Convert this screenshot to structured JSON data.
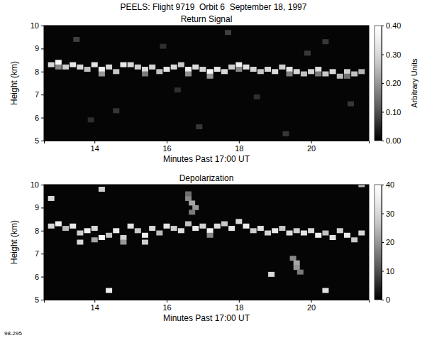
{
  "title": "PEELS: Flight 9719  Orbit 6  September 18, 1997",
  "annotation": "98-295",
  "chart_data": [
    {
      "type": "heatmap",
      "title": "Return Signal",
      "xlabel": "Minutes Past 17:00 UT",
      "ylabel": "Height (km)",
      "xlim": [
        12.6,
        21.6
      ],
      "xticks": [
        14,
        16,
        18,
        20
      ],
      "ylim": [
        5,
        10
      ],
      "yticks": [
        5,
        6,
        7,
        8,
        9,
        10
      ],
      "grid": false,
      "zlabel": "Arbitrary Units",
      "zlim": [
        0,
        0.4
      ],
      "zticks": [
        {
          "value": 0,
          "label": "0.00"
        },
        {
          "value": 0.1,
          "label": "0.10"
        },
        {
          "value": 0.2,
          "label": "0.20"
        },
        {
          "value": 0.3,
          "label": "0.30"
        },
        {
          "value": 0.4,
          "label": "0.40"
        }
      ],
      "cells": [
        [
          12.8,
          8.3,
          0.3
        ],
        [
          13.0,
          8.4,
          0.38
        ],
        [
          13.2,
          8.2,
          0.28
        ],
        [
          13.4,
          8.3,
          0.33
        ],
        [
          13.6,
          8.2,
          0.3
        ],
        [
          13.8,
          8.1,
          0.26
        ],
        [
          14.0,
          8.3,
          0.32
        ],
        [
          14.2,
          8.1,
          0.36
        ],
        [
          14.4,
          8.2,
          0.3
        ],
        [
          14.6,
          8.0,
          0.27
        ],
        [
          14.8,
          8.3,
          0.34
        ],
        [
          15.0,
          8.3,
          0.3
        ],
        [
          15.2,
          8.2,
          0.28
        ],
        [
          15.4,
          8.1,
          0.31
        ],
        [
          15.6,
          8.2,
          0.29
        ],
        [
          15.8,
          8.0,
          0.26
        ],
        [
          16.0,
          8.1,
          0.33
        ],
        [
          16.2,
          8.2,
          0.3
        ],
        [
          16.4,
          8.3,
          0.27
        ],
        [
          16.6,
          8.1,
          0.35
        ],
        [
          16.8,
          8.2,
          0.31
        ],
        [
          17.0,
          8.1,
          0.29
        ],
        [
          17.2,
          8.0,
          0.37
        ],
        [
          17.4,
          8.1,
          0.33
        ],
        [
          17.6,
          8.0,
          0.3
        ],
        [
          17.8,
          8.2,
          0.28
        ],
        [
          18.0,
          8.3,
          0.36
        ],
        [
          18.2,
          8.2,
          0.32
        ],
        [
          18.4,
          8.1,
          0.29
        ],
        [
          18.6,
          8.0,
          0.27
        ],
        [
          18.8,
          8.1,
          0.3
        ],
        [
          19.0,
          8.0,
          0.31
        ],
        [
          19.2,
          8.2,
          0.28
        ],
        [
          19.4,
          8.1,
          0.33
        ],
        [
          19.6,
          8.0,
          0.3
        ],
        [
          19.8,
          7.9,
          0.26
        ],
        [
          20.0,
          8.0,
          0.29
        ],
        [
          20.2,
          8.1,
          0.31
        ],
        [
          20.4,
          7.9,
          0.27
        ],
        [
          20.6,
          8.0,
          0.3
        ],
        [
          20.8,
          7.8,
          0.25
        ],
        [
          21.0,
          8.0,
          0.28
        ],
        [
          21.2,
          7.9,
          0.26
        ],
        [
          21.4,
          8.0,
          0.24
        ],
        [
          13.0,
          8.2,
          0.18
        ],
        [
          14.2,
          7.9,
          0.2
        ],
        [
          15.4,
          7.9,
          0.16
        ],
        [
          16.6,
          7.9,
          0.19
        ],
        [
          17.2,
          7.8,
          0.2
        ],
        [
          18.0,
          8.1,
          0.18
        ],
        [
          19.4,
          7.9,
          0.17
        ],
        [
          20.2,
          7.9,
          0.16
        ],
        [
          21.0,
          7.8,
          0.15
        ],
        [
          13.5,
          9.4,
          0.08
        ],
        [
          14.6,
          6.3,
          0.07
        ],
        [
          15.9,
          9.1,
          0.06
        ],
        [
          16.9,
          5.6,
          0.07
        ],
        [
          17.7,
          9.7,
          0.08
        ],
        [
          18.5,
          6.9,
          0.06
        ],
        [
          19.3,
          5.3,
          0.07
        ],
        [
          20.4,
          9.3,
          0.07
        ],
        [
          13.9,
          5.9,
          0.06
        ],
        [
          21.1,
          6.6,
          0.07
        ],
        [
          16.3,
          7.2,
          0.06
        ],
        [
          19.9,
          8.8,
          0.07
        ]
      ]
    },
    {
      "type": "heatmap",
      "title": "Depolarization",
      "xlabel": "Minutes Past 17:00 UT",
      "ylabel": "Height (km)",
      "xlim": [
        12.6,
        21.6
      ],
      "xticks": [
        14,
        16,
        18,
        20
      ],
      "ylim": [
        5,
        10
      ],
      "yticks": [
        5,
        6,
        7,
        8,
        9,
        10
      ],
      "grid": false,
      "zlim": [
        0,
        40
      ],
      "zticks": [
        0,
        10,
        20,
        30,
        40
      ],
      "cells": [
        [
          12.8,
          8.2,
          30
        ],
        [
          13.0,
          8.3,
          36
        ],
        [
          13.2,
          8.1,
          25
        ],
        [
          13.4,
          8.2,
          33
        ],
        [
          13.6,
          7.9,
          28
        ],
        [
          13.8,
          8.0,
          35
        ],
        [
          14.0,
          8.1,
          30
        ],
        [
          14.2,
          7.7,
          38
        ],
        [
          14.4,
          7.8,
          26
        ],
        [
          14.6,
          8.0,
          34
        ],
        [
          14.8,
          7.7,
          29
        ],
        [
          15.0,
          8.2,
          32
        ],
        [
          15.2,
          8.0,
          27
        ],
        [
          15.4,
          7.8,
          35
        ],
        [
          15.6,
          8.1,
          30
        ],
        [
          15.8,
          7.9,
          25
        ],
        [
          16.0,
          8.2,
          33
        ],
        [
          16.2,
          8.1,
          28
        ],
        [
          16.4,
          8.0,
          31
        ],
        [
          16.6,
          8.3,
          26
        ],
        [
          16.8,
          8.1,
          34
        ],
        [
          17.0,
          8.2,
          29
        ],
        [
          17.2,
          8.0,
          36
        ],
        [
          17.4,
          8.2,
          31
        ],
        [
          17.6,
          8.3,
          27
        ],
        [
          17.8,
          8.1,
          33
        ],
        [
          18.0,
          8.4,
          30
        ],
        [
          18.2,
          8.2,
          35
        ],
        [
          18.4,
          8.0,
          28
        ],
        [
          18.6,
          8.1,
          32
        ],
        [
          18.8,
          7.9,
          29
        ],
        [
          19.0,
          8.0,
          34
        ],
        [
          19.2,
          8.1,
          27
        ],
        [
          19.4,
          7.9,
          31
        ],
        [
          19.6,
          8.0,
          28
        ],
        [
          19.8,
          7.9,
          33
        ],
        [
          20.0,
          8.0,
          30
        ],
        [
          20.2,
          7.8,
          36
        ],
        [
          20.4,
          7.9,
          26
        ],
        [
          20.6,
          7.7,
          32
        ],
        [
          20.8,
          8.0,
          29
        ],
        [
          21.0,
          7.8,
          34
        ],
        [
          21.2,
          7.6,
          27
        ],
        [
          21.4,
          7.9,
          30
        ],
        [
          16.6,
          9.4,
          18
        ],
        [
          16.7,
          9.2,
          22
        ],
        [
          16.8,
          9.0,
          20
        ],
        [
          16.7,
          8.8,
          16
        ],
        [
          16.6,
          9.6,
          14
        ],
        [
          19.5,
          6.8,
          18
        ],
        [
          19.6,
          6.6,
          22
        ],
        [
          19.6,
          6.4,
          20
        ],
        [
          19.7,
          6.2,
          16
        ],
        [
          12.8,
          9.4,
          30
        ],
        [
          14.2,
          9.8,
          28
        ],
        [
          14.4,
          5.4,
          35
        ],
        [
          18.9,
          6.1,
          30
        ],
        [
          20.4,
          5.4,
          32
        ],
        [
          21.4,
          10.0,
          25
        ],
        [
          13.6,
          7.5,
          30
        ],
        [
          15.4,
          7.5,
          28
        ],
        [
          14.0,
          7.6,
          22
        ],
        [
          14.8,
          7.5,
          20
        ],
        [
          17.2,
          7.8,
          18
        ]
      ]
    }
  ]
}
